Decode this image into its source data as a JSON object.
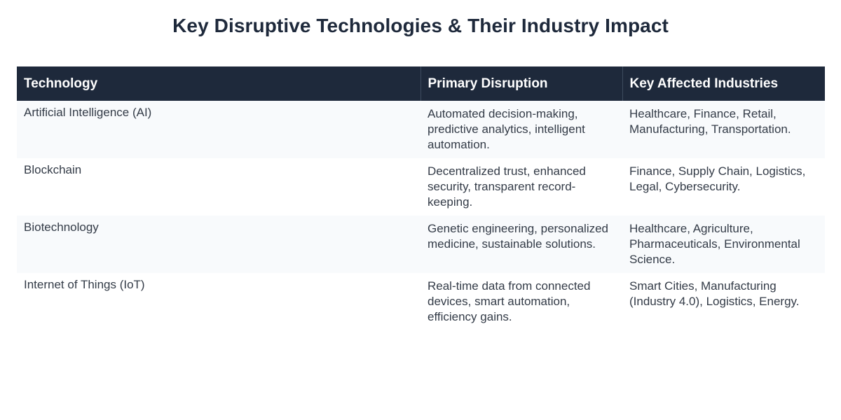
{
  "page": {
    "title": "Key Disruptive Technologies & Their Industry Impact"
  },
  "table": {
    "headers": [
      "Technology",
      "Primary Disruption",
      "Key Affected Industries"
    ],
    "rows": [
      {
        "technology": "Artificial Intelligence (AI)",
        "disruption": "Automated decision-making, predictive analytics, intelligent automation.",
        "industries": "Healthcare, Finance, Retail, Manufacturing, Transportation."
      },
      {
        "technology": "Blockchain",
        "disruption": "Decentralized trust, enhanced security, transparent record-keeping.",
        "industries": "Finance, Supply Chain, Logistics, Legal, Cybersecurity."
      },
      {
        "technology": "Biotechnology",
        "disruption": "Genetic engineering, personalized medicine, sustainable solutions.",
        "industries": "Healthcare, Agriculture, Pharmaceuticals, Environmental Science."
      },
      {
        "technology": "Internet of Things (IoT)",
        "disruption": "Real-time data from connected devices, smart automation, efficiency gains.",
        "industries": "Smart Cities, Manufacturing (Industry 4.0), Logistics, Energy."
      }
    ]
  },
  "colors": {
    "header_bg": "#1e293b",
    "stripe_bg": "#f8fafc",
    "title_text": "#1e293b",
    "body_text": "#333b47"
  }
}
